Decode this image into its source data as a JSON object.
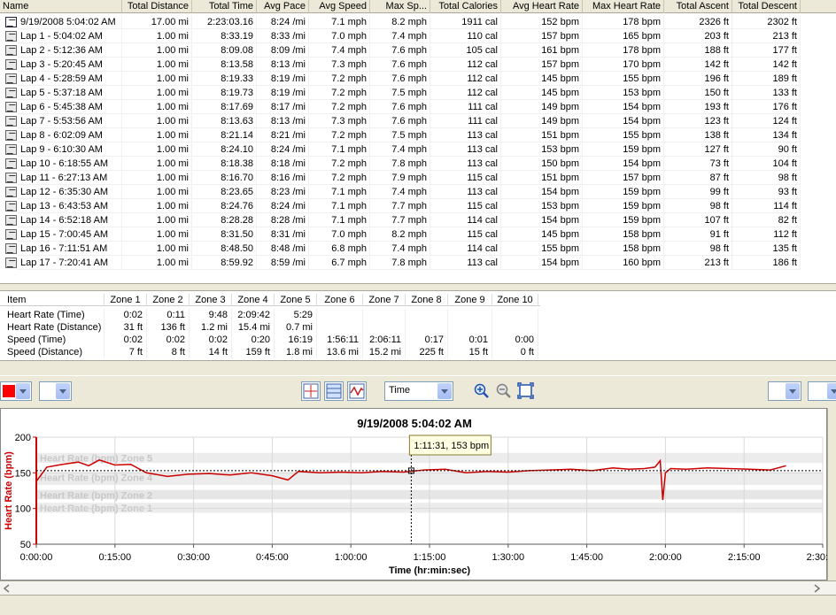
{
  "laps": {
    "columns": [
      "Name",
      "Total Distance",
      "Total Time",
      "Avg Pace",
      "Avg Speed",
      "Max Sp...",
      "Total Calories",
      "Avg Heart Rate",
      "Max Heart Rate",
      "Total Ascent",
      "Total Descent"
    ],
    "rows": [
      [
        "9/19/2008 5:04:02 AM",
        "17.00 mi",
        "2:23:03.16",
        "8:24 /mi",
        "7.1 mph",
        "8.2 mph",
        "1911 cal",
        "152 bpm",
        "178 bpm",
        "2326 ft",
        "2302 ft"
      ],
      [
        "Lap 1 - 5:04:02 AM",
        "1.00 mi",
        "8:33.19",
        "8:33 /mi",
        "7.0 mph",
        "7.4 mph",
        "110 cal",
        "157 bpm",
        "165 bpm",
        "203 ft",
        "213 ft"
      ],
      [
        "Lap 2 - 5:12:36 AM",
        "1.00 mi",
        "8:09.08",
        "8:09 /mi",
        "7.4 mph",
        "7.6 mph",
        "105 cal",
        "161 bpm",
        "178 bpm",
        "188 ft",
        "177 ft"
      ],
      [
        "Lap 3 - 5:20:45 AM",
        "1.00 mi",
        "8:13.58",
        "8:13 /mi",
        "7.3 mph",
        "7.6 mph",
        "112 cal",
        "157 bpm",
        "170 bpm",
        "142 ft",
        "142 ft"
      ],
      [
        "Lap 4 - 5:28:59 AM",
        "1.00 mi",
        "8:19.33",
        "8:19 /mi",
        "7.2 mph",
        "7.6 mph",
        "112 cal",
        "145 bpm",
        "155 bpm",
        "196 ft",
        "189 ft"
      ],
      [
        "Lap 5 - 5:37:18 AM",
        "1.00 mi",
        "8:19.73",
        "8:19 /mi",
        "7.2 mph",
        "7.5 mph",
        "112 cal",
        "145 bpm",
        "153 bpm",
        "150 ft",
        "133 ft"
      ],
      [
        "Lap 6 - 5:45:38 AM",
        "1.00 mi",
        "8:17.69",
        "8:17 /mi",
        "7.2 mph",
        "7.6 mph",
        "111 cal",
        "149 bpm",
        "154 bpm",
        "193 ft",
        "176 ft"
      ],
      [
        "Lap 7 - 5:53:56 AM",
        "1.00 mi",
        "8:13.63",
        "8:13 /mi",
        "7.3 mph",
        "7.6 mph",
        "111 cal",
        "149 bpm",
        "154 bpm",
        "123 ft",
        "124 ft"
      ],
      [
        "Lap 8 - 6:02:09 AM",
        "1.00 mi",
        "8:21.14",
        "8:21 /mi",
        "7.2 mph",
        "7.5 mph",
        "113 cal",
        "151 bpm",
        "155 bpm",
        "138 ft",
        "134 ft"
      ],
      [
        "Lap 9 - 6:10:30 AM",
        "1.00 mi",
        "8:24.10",
        "8:24 /mi",
        "7.1 mph",
        "7.4 mph",
        "113 cal",
        "153 bpm",
        "159 bpm",
        "127 ft",
        "90 ft"
      ],
      [
        "Lap 10 - 6:18:55 AM",
        "1.00 mi",
        "8:18.38",
        "8:18 /mi",
        "7.2 mph",
        "7.8 mph",
        "113 cal",
        "150 bpm",
        "154 bpm",
        "73 ft",
        "104 ft"
      ],
      [
        "Lap 11 - 6:27:13 AM",
        "1.00 mi",
        "8:16.70",
        "8:16 /mi",
        "7.2 mph",
        "7.9 mph",
        "115 cal",
        "151 bpm",
        "157 bpm",
        "87 ft",
        "98 ft"
      ],
      [
        "Lap 12 - 6:35:30 AM",
        "1.00 mi",
        "8:23.65",
        "8:23 /mi",
        "7.1 mph",
        "7.4 mph",
        "113 cal",
        "154 bpm",
        "159 bpm",
        "99 ft",
        "93 ft"
      ],
      [
        "Lap 13 - 6:43:53 AM",
        "1.00 mi",
        "8:24.76",
        "8:24 /mi",
        "7.1 mph",
        "7.7 mph",
        "115 cal",
        "153 bpm",
        "159 bpm",
        "98 ft",
        "114 ft"
      ],
      [
        "Lap 14 - 6:52:18 AM",
        "1.00 mi",
        "8:28.28",
        "8:28 /mi",
        "7.1 mph",
        "7.7 mph",
        "114 cal",
        "154 bpm",
        "159 bpm",
        "107 ft",
        "82 ft"
      ],
      [
        "Lap 15 - 7:00:45 AM",
        "1.00 mi",
        "8:31.50",
        "8:31 /mi",
        "7.0 mph",
        "8.2 mph",
        "115 cal",
        "145 bpm",
        "158 bpm",
        "91 ft",
        "112 ft"
      ],
      [
        "Lap 16 - 7:11:51 AM",
        "1.00 mi",
        "8:48.50",
        "8:48 /mi",
        "6.8 mph",
        "7.4 mph",
        "114 cal",
        "155 bpm",
        "158 bpm",
        "98 ft",
        "135 ft"
      ],
      [
        "Lap 17 - 7:20:41 AM",
        "1.00 mi",
        "8:59.92",
        "8:59 /mi",
        "6.7 mph",
        "7.8 mph",
        "113 cal",
        "154 bpm",
        "160 bpm",
        "213 ft",
        "186 ft"
      ]
    ]
  },
  "zones": {
    "columns": [
      "Item",
      "Zone 1",
      "Zone 2",
      "Zone 3",
      "Zone 4",
      "Zone 5",
      "Zone 6",
      "Zone 7",
      "Zone 8",
      "Zone 9",
      "Zone 10"
    ],
    "rows": [
      [
        "Heart Rate (Time)",
        "0:02",
        "0:11",
        "9:48",
        "2:09:42",
        "5:29",
        "",
        "",
        "",
        "",
        ""
      ],
      [
        "Heart Rate (Distance)",
        "31 ft",
        "136 ft",
        "1.2 mi",
        "15.4 mi",
        "0.7 mi",
        "",
        "",
        "",
        "",
        ""
      ],
      [
        "Speed (Time)",
        "0:02",
        "0:02",
        "0:02",
        "0:20",
        "16:19",
        "1:56:11",
        "2:06:11",
        "0:17",
        "0:01",
        "0:00"
      ],
      [
        "Speed (Distance)",
        "7 ft",
        "8 ft",
        "14 ft",
        "159 ft",
        "1.8 mi",
        "13.6 mi",
        "15.2 mi",
        "225 ft",
        "15 ft",
        "0 ft"
      ]
    ]
  },
  "toolbar": {
    "color_swatch": "#ff0000",
    "axis_select": "Time"
  },
  "chart_data": {
    "type": "line",
    "title": "9/19/2008 5:04:02 AM",
    "xlabel": "Time (hr:min:sec)",
    "ylabel": "Heart Rate (bpm)",
    "ylim": [
      50,
      200
    ],
    "xlim": [
      0,
      9000
    ],
    "x_ticks": [
      "0:00:00",
      "0:15:00",
      "0:30:00",
      "0:45:00",
      "1:00:00",
      "1:15:00",
      "1:30:00",
      "1:45:00",
      "2:00:00",
      "2:15:00",
      "2:30:00"
    ],
    "y_ticks": [
      "200",
      "150",
      "100",
      "50"
    ],
    "zones": [
      {
        "label": "Heart Rate (bpm) Zone 5",
        "lo": 164,
        "hi": 178
      },
      {
        "label": "Heart Rate (bpm) Zone 4",
        "lo": 133,
        "hi": 151
      },
      {
        "label": "Heart Rate (bpm) Zone 2",
        "lo": 113,
        "hi": 126
      },
      {
        "label": "Heart Rate (bpm) Zone 1",
        "lo": 94,
        "hi": 108
      }
    ],
    "cursor_label": "1:11:31, 153 bpm",
    "cursor": {
      "x": 4291,
      "y": 153
    },
    "grid": true,
    "series": [
      {
        "color": "#cc0000",
        "x": [
          0,
          120,
          300,
          480,
          600,
          720,
          900,
          1080,
          1260,
          1500,
          1740,
          1980,
          2220,
          2460,
          2700,
          2880,
          3000,
          3240,
          3480,
          3720,
          3960,
          4200,
          4440,
          4680,
          4920,
          5160,
          5400,
          5640,
          5880,
          6120,
          6360,
          6600,
          6780,
          6960,
          7080,
          7140,
          7170,
          7200,
          7260,
          7440,
          7680,
          7920,
          8160,
          8400,
          8580
        ],
        "y": [
          138,
          158,
          162,
          165,
          160,
          168,
          161,
          162,
          150,
          145,
          148,
          149,
          147,
          150,
          146,
          140,
          152,
          150,
          151,
          150,
          152,
          151,
          154,
          155,
          150,
          152,
          151,
          153,
          154,
          155,
          153,
          157,
          155,
          156,
          158,
          167,
          112,
          150,
          156,
          155,
          157,
          156,
          155,
          154,
          160
        ]
      }
    ]
  }
}
